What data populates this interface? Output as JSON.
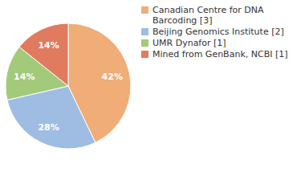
{
  "chart_data": {
    "type": "pie",
    "categories": [
      "Canadian Centre for DNA Barcoding [3]",
      "Beijing Genomics Institute [2]",
      "UMR Dynafor [1]",
      "Mined from GenBank, NCBI [1]"
    ],
    "values": [
      42,
      28,
      14,
      14
    ],
    "value_labels": [
      "42%",
      "28%",
      "14%",
      "14%"
    ],
    "colors": [
      "#f0ad78",
      "#9fbde3",
      "#a3c97a",
      "#e07b5f"
    ],
    "data_labels": true,
    "legend": "top-right"
  }
}
